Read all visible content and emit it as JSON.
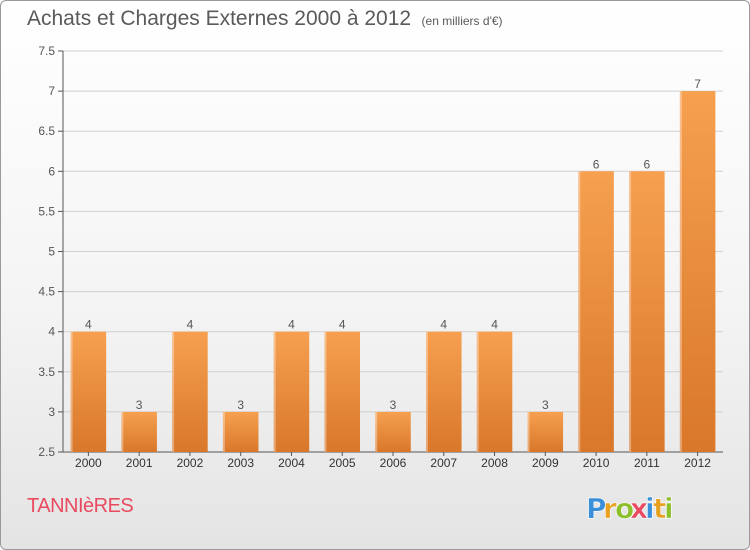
{
  "header": {
    "title": "Achats et Charges Externes 2000 à 2012",
    "subtitle": "(en milliers d'€)"
  },
  "footer": {
    "commune": "TANNIèRES",
    "logo_text": "Proxiti"
  },
  "colors": {
    "bar_top": "#f6a050",
    "bar_bottom": "#d9772a",
    "grid": "#d0d0d0",
    "commune_text": "#e84a5f",
    "logo_letters": [
      "#3a8fd9",
      "#e8a020",
      "#8cbf2a",
      "#e84a5f",
      "#3a8fd9",
      "#e8a020",
      "#8cbf2a"
    ]
  },
  "chart_data": {
    "type": "bar",
    "categories": [
      "2000",
      "2001",
      "2002",
      "2003",
      "2004",
      "2005",
      "2006",
      "2007",
      "2008",
      "2009",
      "2010",
      "2011",
      "2012"
    ],
    "values": [
      4,
      3,
      4,
      3,
      4,
      4,
      3,
      4,
      4,
      3,
      6,
      6,
      7
    ],
    "value_labels": [
      "4",
      "3",
      "4",
      "3",
      "4",
      "4",
      "3",
      "4",
      "4",
      "3",
      "6",
      "6",
      "7"
    ],
    "yticks": [
      2.5,
      3,
      3.5,
      4,
      4.5,
      5,
      5.5,
      6,
      6.5,
      7,
      7.5
    ],
    "ytick_labels": [
      "2.5",
      "3",
      "3.5",
      "4",
      "4.5",
      "5",
      "5.5",
      "6",
      "6.5",
      "7",
      "7.5"
    ],
    "ylim": [
      2.5,
      7.5
    ],
    "grid": true,
    "title": "Achats et Charges Externes 2000 à 2012",
    "xlabel": "",
    "ylabel": ""
  }
}
